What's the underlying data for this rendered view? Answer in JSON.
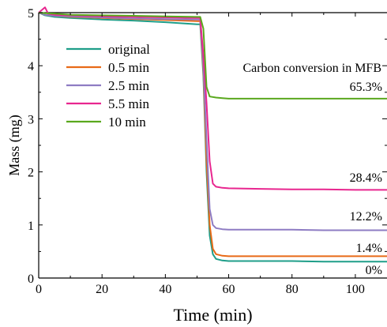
{
  "chart_data": {
    "type": "line",
    "xlabel": "Time (min)",
    "ylabel": "Mass (mg)",
    "xlim": [
      0,
      110
    ],
    "ylim": [
      0,
      5
    ],
    "xticks": [
      "0",
      "20",
      "40",
      "60",
      "80",
      "100"
    ],
    "yticks": [
      "0",
      "1",
      "2",
      "3",
      "4",
      "5"
    ],
    "grid": false,
    "legend_position": "upper-left",
    "annotation_title": "Carbon conversion in MFB",
    "series": [
      {
        "name": "original",
        "color": "#1f9e89",
        "x": [
          0,
          2,
          5,
          10,
          20,
          30,
          40,
          50,
          51,
          52,
          53,
          54,
          55,
          56,
          58,
          60,
          70,
          80,
          90,
          100,
          110
        ],
        "y": [
          5.0,
          4.95,
          4.92,
          4.9,
          4.87,
          4.85,
          4.82,
          4.78,
          4.78,
          3.8,
          2.0,
          0.8,
          0.45,
          0.36,
          0.33,
          0.32,
          0.32,
          0.32,
          0.31,
          0.31,
          0.31
        ],
        "label": "0%"
      },
      {
        "name": "0.5 min",
        "color": "#e86a17",
        "x": [
          0,
          2,
          5,
          10,
          20,
          30,
          40,
          50,
          51,
          52,
          53,
          54,
          55,
          56,
          58,
          60,
          70,
          80,
          90,
          100,
          110
        ],
        "y": [
          5.0,
          4.96,
          4.94,
          4.92,
          4.9,
          4.88,
          4.86,
          4.84,
          4.84,
          3.9,
          2.2,
          1.0,
          0.55,
          0.45,
          0.42,
          0.41,
          0.41,
          0.41,
          0.41,
          0.41,
          0.41
        ],
        "label": "1.4%"
      },
      {
        "name": "2.5 min",
        "color": "#8e7cc3",
        "x": [
          0,
          2,
          5,
          10,
          20,
          30,
          40,
          50,
          51,
          52,
          53,
          54,
          55,
          56,
          58,
          60,
          70,
          80,
          90,
          100,
          110
        ],
        "y": [
          5.0,
          4.96,
          4.94,
          4.93,
          4.91,
          4.89,
          4.88,
          4.87,
          4.87,
          4.0,
          2.6,
          1.3,
          1.0,
          0.94,
          0.92,
          0.91,
          0.91,
          0.91,
          0.9,
          0.9,
          0.9
        ],
        "label": "12.2%"
      },
      {
        "name": "5.5 min",
        "color": "#e8268f",
        "x": [
          0,
          1,
          2,
          3,
          5,
          10,
          20,
          30,
          40,
          50,
          51,
          52,
          53,
          54,
          55,
          56,
          58,
          60,
          70,
          80,
          90,
          100,
          110
        ],
        "y": [
          5.0,
          5.05,
          5.1,
          4.98,
          4.96,
          4.95,
          4.93,
          4.92,
          4.91,
          4.9,
          4.9,
          4.2,
          3.3,
          2.2,
          1.78,
          1.72,
          1.7,
          1.69,
          1.68,
          1.67,
          1.67,
          1.66,
          1.66
        ],
        "label": "28.4%"
      },
      {
        "name": "10 min",
        "color": "#5aa81e",
        "x": [
          0,
          2,
          5,
          10,
          20,
          30,
          40,
          50,
          51,
          52,
          53,
          54,
          56,
          58,
          60,
          70,
          80,
          90,
          100,
          110
        ],
        "y": [
          5.0,
          4.99,
          4.98,
          4.96,
          4.95,
          4.94,
          4.93,
          4.92,
          4.92,
          4.7,
          3.6,
          3.42,
          3.4,
          3.39,
          3.38,
          3.38,
          3.38,
          3.38,
          3.38,
          3.38
        ],
        "label": "65.3%"
      }
    ]
  }
}
